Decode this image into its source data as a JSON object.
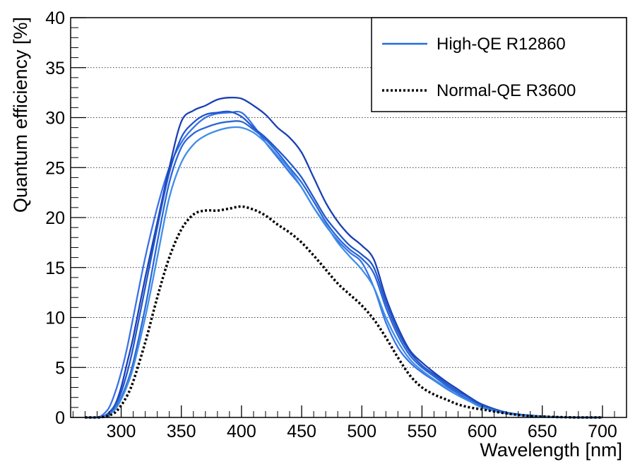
{
  "chart_data": {
    "type": "line",
    "title": "",
    "xlabel": "Wavelength [nm]",
    "ylabel": "Quantum efficiency [%]",
    "xlim": [
      258,
      720
    ],
    "ylim": [
      0,
      40
    ],
    "x_ticks": [
      "300",
      "350",
      "400",
      "450",
      "500",
      "550",
      "600",
      "650",
      "700"
    ],
    "y_ticks": [
      "0",
      "5",
      "10",
      "15",
      "20",
      "25",
      "30",
      "35",
      "40"
    ],
    "grid": "horizontal dotted",
    "legend_position": "top-right",
    "legend": [
      {
        "label": "High-QE R12860",
        "color": "#1f6fe0",
        "style": "solid"
      },
      {
        "label": "Normal-QE R3600",
        "color": "#000000",
        "style": "dotted"
      }
    ],
    "series": [
      {
        "group": "High-QE R12860",
        "color": "#3a72e8",
        "style": "solid",
        "x": [
          270,
          280,
          285,
          290,
          295,
          300,
          305,
          310,
          320,
          330,
          340,
          350,
          360,
          370,
          380,
          390,
          400,
          410,
          420,
          430,
          440,
          450,
          460,
          470,
          480,
          490,
          500,
          510,
          520,
          530,
          540,
          550,
          560,
          570,
          580,
          590,
          600,
          620,
          640,
          660,
          680,
          700
        ],
        "y": [
          0,
          0,
          0.3,
          1,
          2.5,
          4.5,
          7,
          10,
          16,
          21,
          25,
          27.5,
          29,
          30,
          30.4,
          30.5,
          30.5,
          29.2,
          27.5,
          26,
          24.5,
          23,
          21,
          19.2,
          17.7,
          16.5,
          15.5,
          13,
          9.5,
          7,
          5.5,
          4.5,
          3.7,
          2.9,
          2.2,
          1.6,
          1,
          0.4,
          0.15,
          0.05,
          0,
          0
        ]
      },
      {
        "group": "High-QE R12860",
        "color": "#1a3fb5",
        "style": "solid",
        "x": [
          270,
          280,
          285,
          290,
          295,
          300,
          305,
          310,
          320,
          330,
          340,
          350,
          360,
          370,
          380,
          390,
          400,
          410,
          420,
          430,
          440,
          450,
          460,
          470,
          480,
          490,
          500,
          510,
          520,
          530,
          540,
          550,
          560,
          570,
          580,
          590,
          600,
          620,
          640,
          660,
          680,
          700
        ],
        "y": [
          0,
          0,
          0.1,
          0.5,
          1.3,
          3,
          5.5,
          8,
          14,
          19.5,
          25,
          29.6,
          30.7,
          31.2,
          31.8,
          32,
          31.9,
          31.2,
          30.3,
          29,
          28,
          26.5,
          24,
          21.5,
          19.6,
          18.2,
          17.2,
          15.8,
          12,
          9,
          6.7,
          5.5,
          4.5,
          3.6,
          2.8,
          2,
          1.3,
          0.5,
          0.2,
          0.05,
          0,
          0
        ]
      },
      {
        "group": "High-QE R12860",
        "color": "#2256c9",
        "style": "solid",
        "x": [
          270,
          280,
          285,
          290,
          295,
          300,
          305,
          310,
          320,
          330,
          340,
          350,
          360,
          370,
          380,
          390,
          400,
          410,
          420,
          430,
          440,
          450,
          460,
          470,
          480,
          490,
          500,
          510,
          520,
          530,
          540,
          550,
          560,
          570,
          580,
          590,
          600,
          620,
          640,
          660,
          680,
          700
        ],
        "y": [
          0,
          0,
          0.1,
          0.4,
          1.2,
          2.5,
          4.5,
          7,
          13,
          19,
          24.5,
          28,
          29.5,
          30.3,
          30.5,
          30.6,
          30.1,
          29,
          28,
          26.8,
          25.5,
          24,
          22,
          20,
          18.5,
          17.2,
          16.3,
          15,
          11.5,
          8.6,
          6.5,
          5.2,
          4.3,
          3.4,
          2.6,
          1.9,
          1.2,
          0.5,
          0.18,
          0.05,
          0,
          0
        ]
      },
      {
        "group": "High-QE R12860",
        "color": "#2a66d8",
        "style": "solid",
        "x": [
          270,
          280,
          285,
          290,
          295,
          300,
          305,
          310,
          320,
          330,
          340,
          350,
          360,
          370,
          380,
          390,
          400,
          410,
          420,
          430,
          440,
          450,
          460,
          470,
          480,
          490,
          500,
          510,
          520,
          530,
          540,
          550,
          560,
          570,
          580,
          590,
          600,
          620,
          640,
          660,
          680,
          700
        ],
        "y": [
          0,
          0,
          0.05,
          0.3,
          0.9,
          2,
          3.5,
          5.5,
          11,
          17.5,
          23.5,
          27,
          28.4,
          29,
          29.4,
          29.6,
          29.6,
          28.8,
          27.8,
          26.5,
          25,
          23.5,
          21.6,
          19.6,
          18,
          16.8,
          15.9,
          14.4,
          11,
          8.2,
          6.2,
          5,
          4.1,
          3.2,
          2.4,
          1.7,
          1.1,
          0.4,
          0.15,
          0.04,
          0,
          0
        ]
      },
      {
        "group": "High-QE R12860",
        "color": "#3e8ee8",
        "style": "solid",
        "x": [
          270,
          280,
          285,
          290,
          295,
          300,
          305,
          310,
          320,
          330,
          340,
          350,
          360,
          370,
          380,
          390,
          400,
          410,
          420,
          430,
          440,
          450,
          460,
          470,
          480,
          490,
          500,
          510,
          520,
          530,
          540,
          550,
          560,
          570,
          580,
          590,
          600,
          620,
          640,
          660,
          680,
          700
        ],
        "y": [
          0,
          0,
          0.05,
          0.3,
          0.8,
          1.8,
          3.2,
          5,
          10,
          16,
          22,
          25.5,
          27.3,
          28.2,
          28.7,
          29,
          29,
          28.5,
          27.5,
          26.2,
          24.8,
          23,
          21,
          19.3,
          17.5,
          16.1,
          14.8,
          13,
          10,
          7.6,
          5.8,
          4.7,
          3.8,
          3,
          2.2,
          1.6,
          1,
          0.4,
          0.13,
          0.04,
          0,
          0
        ]
      },
      {
        "group": "Normal-QE R3600",
        "color": "#000000",
        "style": "dotted",
        "x": [
          270,
          280,
          285,
          290,
          295,
          300,
          305,
          310,
          320,
          330,
          340,
          350,
          360,
          370,
          380,
          390,
          400,
          410,
          420,
          430,
          440,
          450,
          460,
          470,
          480,
          490,
          500,
          510,
          520,
          530,
          540,
          550,
          560,
          570,
          580,
          590,
          600,
          620,
          640,
          660,
          680,
          700
        ],
        "y": [
          0,
          0,
          0.05,
          0.2,
          0.5,
          1.2,
          2.2,
          3.6,
          7.5,
          12,
          16,
          18.8,
          20.3,
          20.7,
          20.7,
          20.9,
          21.1,
          20.8,
          20.2,
          19.3,
          18.5,
          17.5,
          16.2,
          14.8,
          13.4,
          12.3,
          11.2,
          9.8,
          8,
          6,
          4.2,
          3,
          2.3,
          1.8,
          1.3,
          1,
          0.8,
          0.4,
          0.15,
          0.05,
          0,
          0
        ]
      }
    ]
  }
}
